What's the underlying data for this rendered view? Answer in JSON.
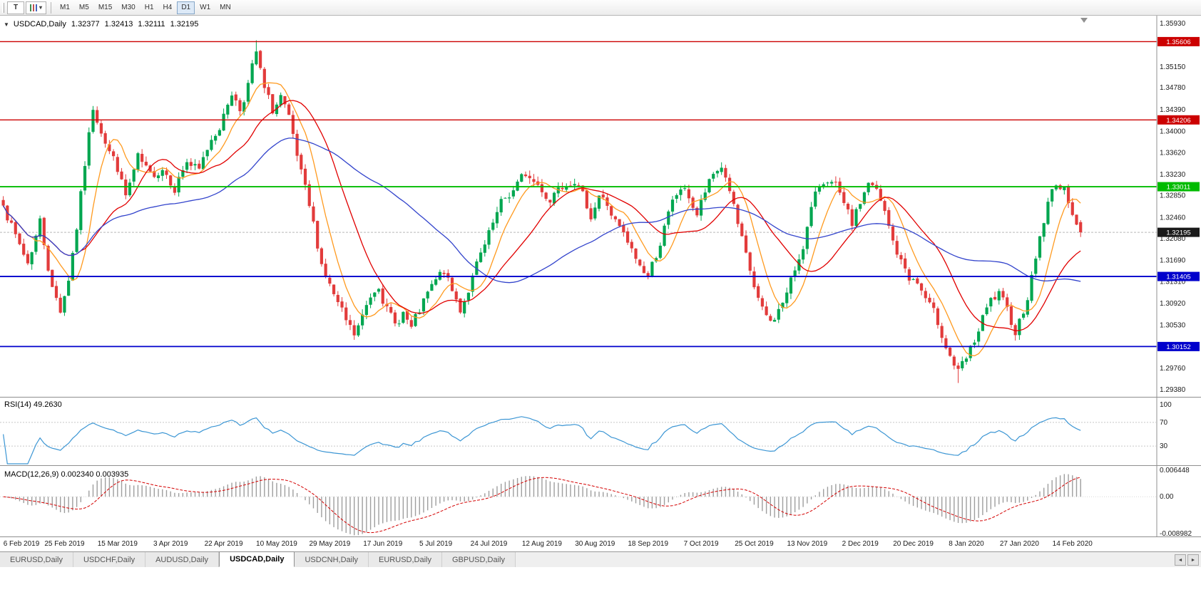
{
  "toolbar": {
    "icons": [
      {
        "name": "templates",
        "glyph": "T"
      },
      {
        "name": "indicators-dropdown",
        "glyph": "▾"
      }
    ],
    "timeframes": [
      "M1",
      "M5",
      "M15",
      "M30",
      "H1",
      "H4",
      "D1",
      "W1",
      "MN"
    ],
    "active_timeframe": "D1"
  },
  "chart_header": {
    "prefix_icon": "▼",
    "symbol_label": "USDCAD,Daily",
    "open": "1.32377",
    "high": "1.32413",
    "low": "1.32111",
    "close": "1.32195"
  },
  "chart_data": {
    "type": "candlestick",
    "symbol": "USDCAD",
    "period": "Daily",
    "bars": 265,
    "candle_colors": {
      "up": "#00A650",
      "down": "#E23B3B"
    },
    "price_axis": {
      "min": 1.29265,
      "max": 1.36019,
      "ticks": [
        "1.35930",
        "1.35150",
        "1.34780",
        "1.34390",
        "1.34000",
        "1.33620",
        "1.33230",
        "1.32850",
        "1.32460",
        "1.32080",
        "1.31690",
        "1.31310",
        "1.30920",
        "1.30530",
        "1.29760",
        "1.29380"
      ]
    },
    "x_axis_labels": [
      {
        "text": "6 Feb 2019",
        "bar": 2
      },
      {
        "text": "25 Feb 2019",
        "bar": 15
      },
      {
        "text": "15 Mar 2019",
        "bar": 28
      },
      {
        "text": "3 Apr 2019",
        "bar": 41
      },
      {
        "text": "22 Apr 2019",
        "bar": 54
      },
      {
        "text": "10 May 2019",
        "bar": 67
      },
      {
        "text": "29 May 2019",
        "bar": 80
      },
      {
        "text": "17 Jun 2019",
        "bar": 93
      },
      {
        "text": "5 Jul 2019",
        "bar": 106
      },
      {
        "text": "24 Jul 2019",
        "bar": 119
      },
      {
        "text": "12 Aug 2019",
        "bar": 132
      },
      {
        "text": "30 Aug 2019",
        "bar": 145
      },
      {
        "text": "18 Sep 2019",
        "bar": 158
      },
      {
        "text": "7 Oct 2019",
        "bar": 171
      },
      {
        "text": "25 Oct 2019",
        "bar": 184
      },
      {
        "text": "13 Nov 2019",
        "bar": 197
      },
      {
        "text": "2 Dec 2019",
        "bar": 210
      },
      {
        "text": "20 Dec 2019",
        "bar": 223
      },
      {
        "text": "8 Jan 2020",
        "bar": 236
      },
      {
        "text": "27 Jan 2020",
        "bar": 249
      },
      {
        "text": "14 Feb 2020",
        "bar": 262
      }
    ],
    "horizontal_lines": [
      {
        "value": 1.35606,
        "label": "1.35606",
        "color": "#CC0000",
        "width": 1.4,
        "role": "resistance"
      },
      {
        "value": 1.34206,
        "label": "1.34206",
        "color": "#CC0000",
        "width": 1.4,
        "role": "resistance"
      },
      {
        "value": 1.33011,
        "label": "1.33011",
        "color": "#00BB00",
        "width": 1.8,
        "role": "pivot"
      },
      {
        "value": 1.31405,
        "label": "1.31405",
        "color": "#0000CC",
        "width": 1.8,
        "role": "support"
      },
      {
        "value": 1.30152,
        "label": "1.30152",
        "color": "#0000CC",
        "width": 1.8,
        "role": "support"
      }
    ],
    "current_price": {
      "value": 1.32195,
      "label": "1.32195",
      "badge_color": "#1a1a1a",
      "line_color": "#b8b8b8"
    },
    "moving_averages": [
      {
        "period": 8,
        "color": "#FF9A1F"
      },
      {
        "period": 20,
        "color": "#E10000"
      },
      {
        "period": 50,
        "color": "#3344CC"
      }
    ],
    "price_path": [
      [
        0,
        1.3278
      ],
      [
        3,
        1.321
      ],
      [
        6,
        1.3165
      ],
      [
        9,
        1.324
      ],
      [
        12,
        1.312
      ],
      [
        14,
        1.3082
      ],
      [
        16,
        1.314
      ],
      [
        18,
        1.323
      ],
      [
        20,
        1.334
      ],
      [
        22,
        1.3442
      ],
      [
        24,
        1.3408
      ],
      [
        26,
        1.3368
      ],
      [
        28,
        1.3335
      ],
      [
        30,
        1.3282
      ],
      [
        33,
        1.3348
      ],
      [
        36,
        1.3315
      ],
      [
        39,
        1.3338
      ],
      [
        42,
        1.3305
      ],
      [
        45,
        1.3348
      ],
      [
        48,
        1.3325
      ],
      [
        51,
        1.3388
      ],
      [
        54,
        1.3428
      ],
      [
        56,
        1.3472
      ],
      [
        58,
        1.344
      ],
      [
        60,
        1.3488
      ],
      [
        62,
        1.3538
      ],
      [
        64,
        1.347
      ],
      [
        66,
        1.3435
      ],
      [
        68,
        1.3462
      ],
      [
        70,
        1.3415
      ],
      [
        72,
        1.3348
      ],
      [
        74,
        1.3288
      ],
      [
        76,
        1.3228
      ],
      [
        78,
        1.3165
      ],
      [
        80,
        1.3125
      ],
      [
        82,
        1.3088
      ],
      [
        84,
        1.3055
      ],
      [
        86,
        1.3032
      ],
      [
        88,
        1.3065
      ],
      [
        90,
        1.3105
      ],
      [
        92,
        1.3132
      ],
      [
        94,
        1.3085
      ],
      [
        96,
        1.305
      ],
      [
        98,
        1.3078
      ],
      [
        100,
        1.3045
      ],
      [
        102,
        1.3075
      ],
      [
        104,
        1.3105
      ],
      [
        106,
        1.3128
      ],
      [
        108,
        1.3148
      ],
      [
        110,
        1.311
      ],
      [
        112,
        1.3082
      ],
      [
        114,
        1.312
      ],
      [
        116,
        1.3158
      ],
      [
        118,
        1.319
      ],
      [
        120,
        1.3228
      ],
      [
        122,
        1.3265
      ],
      [
        124,
        1.3285
      ],
      [
        128,
        1.3322
      ],
      [
        132,
        1.3298
      ],
      [
        134,
        1.3278
      ],
      [
        136,
        1.3308
      ],
      [
        140,
        1.3322
      ],
      [
        142,
        1.3282
      ],
      [
        144,
        1.3252
      ],
      [
        146,
        1.3288
      ],
      [
        148,
        1.3268
      ],
      [
        150,
        1.3238
      ],
      [
        152,
        1.321
      ],
      [
        154,
        1.3182
      ],
      [
        156,
        1.3158
      ],
      [
        158,
        1.3142
      ],
      [
        160,
        1.318
      ],
      [
        162,
        1.3228
      ],
      [
        164,
        1.3268
      ],
      [
        166,
        1.3298
      ],
      [
        168,
        1.3282
      ],
      [
        170,
        1.3252
      ],
      [
        172,
        1.329
      ],
      [
        174,
        1.3318
      ],
      [
        176,
        1.3338
      ],
      [
        178,
        1.3298
      ],
      [
        180,
        1.323
      ],
      [
        182,
        1.317
      ],
      [
        184,
        1.312
      ],
      [
        186,
        1.3075
      ],
      [
        188,
        1.3055
      ],
      [
        190,
        1.308
      ],
      [
        192,
        1.311
      ],
      [
        194,
        1.315
      ],
      [
        196,
        1.32
      ],
      [
        198,
        1.326
      ],
      [
        200,
        1.33
      ],
      [
        202,
        1.332
      ],
      [
        204,
        1.33
      ],
      [
        206,
        1.326
      ],
      [
        208,
        1.323
      ],
      [
        210,
        1.327
      ],
      [
        212,
        1.331
      ],
      [
        214,
        1.329
      ],
      [
        216,
        1.325
      ],
      [
        218,
        1.32
      ],
      [
        220,
        1.3165
      ],
      [
        222,
        1.314
      ],
      [
        224,
        1.3128
      ],
      [
        226,
        1.31
      ],
      [
        228,
        1.307
      ],
      [
        230,
        1.304
      ],
      [
        232,
        1.3002
      ],
      [
        234,
        1.2968
      ],
      [
        236,
        1.2988
      ],
      [
        238,
        1.3022
      ],
      [
        240,
        1.3062
      ],
      [
        242,
        1.3092
      ],
      [
        244,
        1.3105
      ],
      [
        246,
        1.3072
      ],
      [
        248,
        1.3045
      ],
      [
        250,
        1.3082
      ],
      [
        252,
        1.314
      ],
      [
        254,
        1.3212
      ],
      [
        256,
        1.327
      ],
      [
        258,
        1.331
      ],
      [
        260,
        1.3292
      ],
      [
        262,
        1.3262
      ],
      [
        264,
        1.322
      ]
    ],
    "extremes": {
      "peak_bar": 62,
      "peak_high": 1.3563,
      "trough_bar": 234,
      "trough_low": 1.295
    },
    "indicators": {
      "rsi": {
        "label": "RSI(14) 49.2630",
        "period": 14,
        "value": 49.263,
        "color": "#3C96D4",
        "levels": [
          70,
          30
        ],
        "axis_ticks": [
          "100",
          "70",
          "30"
        ]
      },
      "macd": {
        "label": "MACD(12,26,9) 0.002340 0.003935",
        "fast": 12,
        "slow": 26,
        "signal": 9,
        "value_main": 0.00234,
        "value_signal": 0.003935,
        "histogram_color": "#9E9E9E",
        "signal_color": "#D40000",
        "axis_ticks": [
          {
            "text": "0.006448",
            "value": 0.006448
          },
          {
            "text": "0.00",
            "value": 0
          },
          {
            "text": "-0.008982",
            "value": -0.008982
          }
        ]
      }
    }
  },
  "tabs": {
    "items": [
      {
        "label": "EURUSD,Daily",
        "active": false
      },
      {
        "label": "USDCHF,Daily",
        "active": false
      },
      {
        "label": "AUDUSD,Daily",
        "active": false
      },
      {
        "label": "USDCAD,Daily",
        "active": true
      },
      {
        "label": "USDCNH,Daily",
        "active": false
      },
      {
        "label": "EURUSD,Daily",
        "active": false
      },
      {
        "label": "GBPUSD,Daily",
        "active": false
      }
    ]
  },
  "tabbar": {
    "scroll_left": "◄",
    "scroll_right": "►"
  }
}
